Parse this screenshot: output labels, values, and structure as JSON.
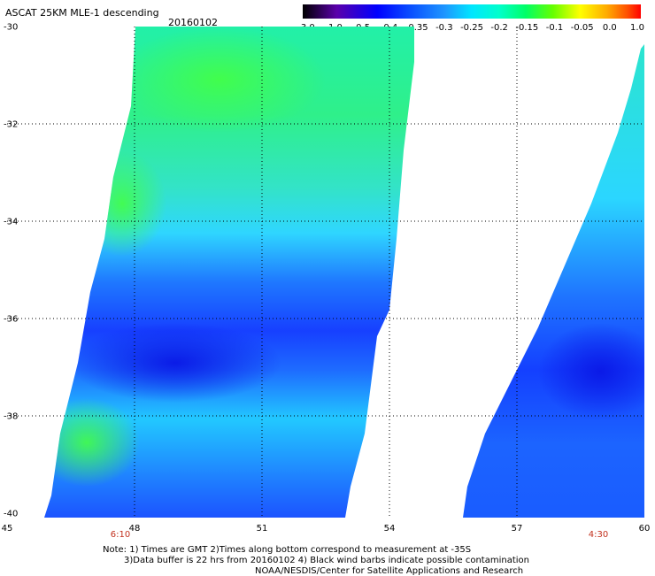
{
  "header": {
    "title": "ASCAT 25KM MLE-1 descending",
    "date": "20160102"
  },
  "colorbar": {
    "labels": [
      "-3.0",
      "-1.0",
      "-0.5",
      "-0.4",
      "-0.35",
      "-0.3",
      "-0.25",
      "-0.2",
      "-0.15",
      "-0.1",
      "-0.05",
      "0.0",
      "1.0"
    ],
    "colors": [
      "#000000",
      "#5a00aa",
      "#0000ff",
      "#0a50ff",
      "#1e96ff",
      "#00e6ff",
      "#00ffcc",
      "#00ff66",
      "#66ff00",
      "#ffff00",
      "#ffaa00",
      "#ff5000",
      "#ff0000"
    ]
  },
  "axes": {
    "lat_labels": [
      "-30",
      "-32",
      "-34",
      "-36",
      "-38",
      "-40"
    ],
    "lon_labels": [
      "45",
      "48",
      "51",
      "54",
      "57",
      "60"
    ],
    "lat_range": [
      -40,
      -30
    ],
    "lon_range": [
      45,
      60
    ]
  },
  "pass_times": [
    "6:10",
    "4:30"
  ],
  "notes": {
    "line1": "Note: 1) Times are GMT 2)Times along bottom correspond to measurement at -35S",
    "line2": "3)Data buffer is 22 hrs from 20160102 4) Black wind barbs indicate possible contamination",
    "line3": "NOAA/NESDIS/Center for Satellite Applications and Research"
  }
}
